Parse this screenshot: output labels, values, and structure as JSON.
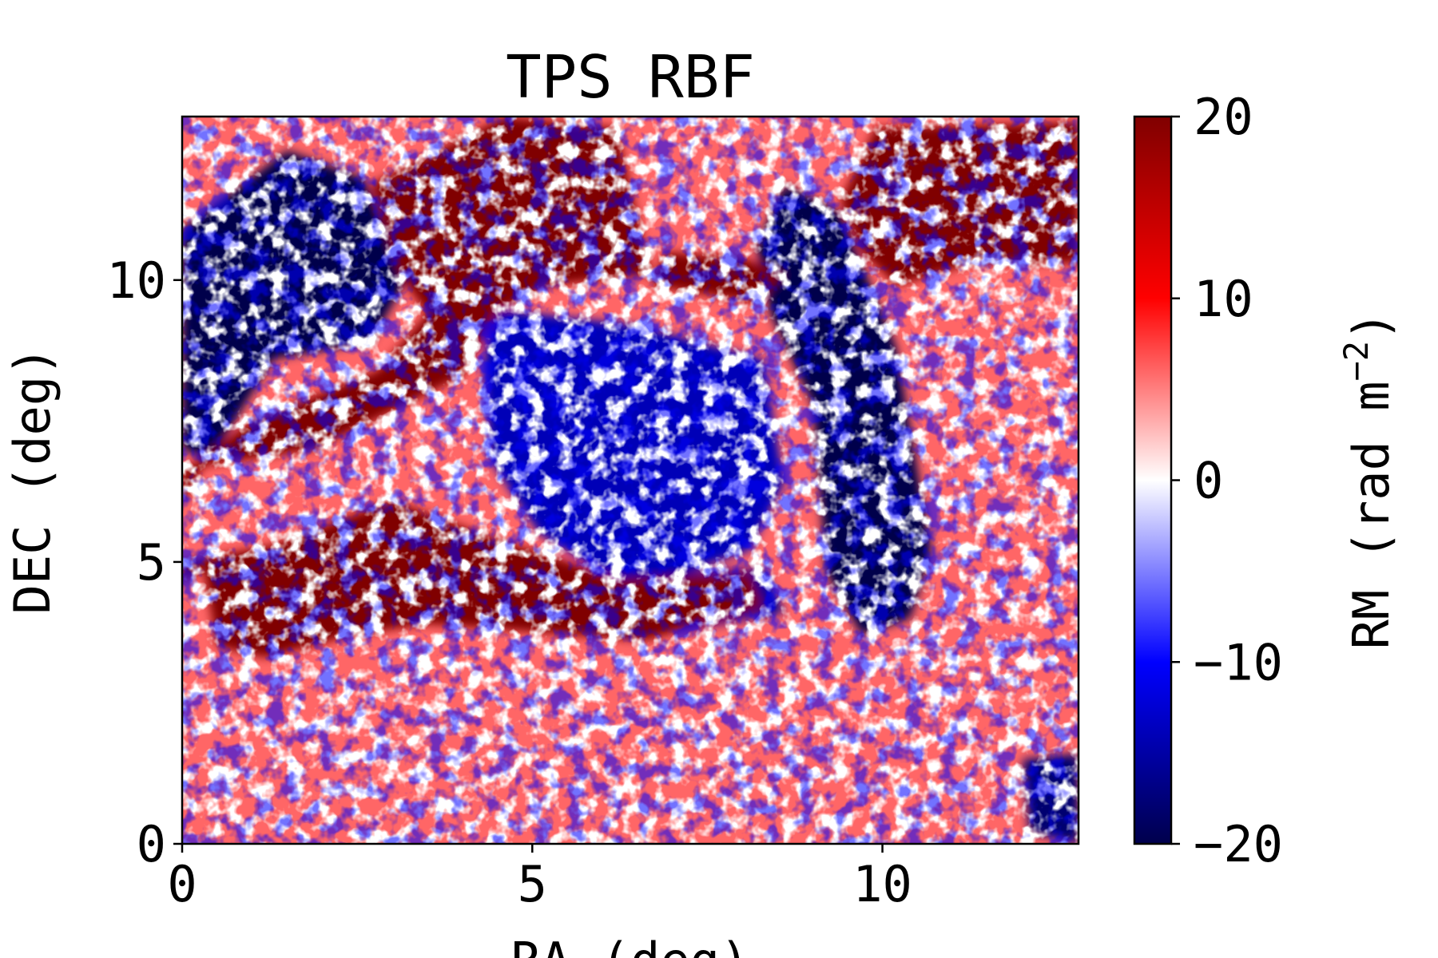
{
  "chart_data": {
    "type": "heatmap",
    "title": "TPS RBF",
    "xlabel": "RA (deg)",
    "ylabel": "DEC (deg)",
    "xlim": [
      0,
      12.8
    ],
    "ylim": [
      0,
      12.9
    ],
    "xticks": [
      {
        "value": 0,
        "label": "0"
      },
      {
        "value": 5,
        "label": "5"
      },
      {
        "value": 10,
        "label": "10"
      }
    ],
    "yticks": [
      {
        "value": 0,
        "label": "0"
      },
      {
        "value": 5,
        "label": "5"
      },
      {
        "value": 10,
        "label": "10"
      }
    ],
    "colorbar": {
      "label": "RM (rad m^-2)",
      "label_main": "RM (rad m",
      "label_exp": "−2",
      "label_close": ")",
      "range": [
        -20,
        20
      ],
      "colormap": "seismic",
      "colormap_stops": [
        "#00004c",
        "#0000ff",
        "#ffffff",
        "#ff0000",
        "#800000"
      ],
      "ticks": [
        {
          "value": 20,
          "label": "20"
        },
        {
          "value": 10,
          "label": "10"
        },
        {
          "value": 0,
          "label": "0"
        },
        {
          "value": -10,
          "label": "−10"
        },
        {
          "value": -20,
          "label": "−20"
        }
      ]
    },
    "regions": [
      {
        "desc": "strong negative",
        "value": -20,
        "polygon": [
          [
            0,
            10.9
          ],
          [
            1.5,
            12.3
          ],
          [
            2.6,
            11.8
          ],
          [
            3.2,
            10.0
          ],
          [
            2.7,
            8.9
          ],
          [
            1.3,
            8.6
          ],
          [
            0.4,
            6.8
          ],
          [
            0,
            7.0
          ]
        ]
      },
      {
        "desc": "strong negative",
        "value": -20,
        "polygon": [
          [
            8.6,
            11.7
          ],
          [
            9.4,
            11.2
          ],
          [
            10.2,
            8.8
          ],
          [
            10.7,
            5.2
          ],
          [
            10.4,
            4.0
          ],
          [
            9.7,
            3.7
          ],
          [
            9.2,
            4.8
          ],
          [
            9.0,
            7.8
          ],
          [
            8.4,
            9.4
          ],
          [
            8.2,
            10.6
          ]
        ]
      },
      {
        "desc": "negative",
        "value": -14,
        "polygon": [
          [
            4.4,
            9.5
          ],
          [
            6.5,
            9.2
          ],
          [
            8.3,
            8.6
          ],
          [
            8.6,
            6.4
          ],
          [
            8.1,
            5.2
          ],
          [
            6.4,
            4.5
          ],
          [
            5.1,
            5.5
          ],
          [
            4.4,
            6.8
          ],
          [
            4.3,
            8.5
          ]
        ]
      },
      {
        "desc": "negative",
        "value": -16,
        "polygon": [
          [
            6.4,
            4.8
          ],
          [
            8.3,
            4.9
          ],
          [
            8.6,
            4.1
          ],
          [
            6.4,
            3.6
          ],
          [
            5.8,
            4.1
          ]
        ]
      },
      {
        "desc": "negative",
        "value": -18,
        "polygon": [
          [
            12.0,
            1.5
          ],
          [
            12.8,
            1.6
          ],
          [
            12.8,
            0
          ],
          [
            12.1,
            0.2
          ]
        ]
      },
      {
        "desc": "strong positive",
        "value": 20,
        "polygon": [
          [
            2.7,
            11.7
          ],
          [
            4.6,
            12.9
          ],
          [
            6.2,
            12.7
          ],
          [
            6.7,
            10.1
          ],
          [
            5.2,
            9.9
          ],
          [
            4.5,
            9.4
          ],
          [
            4.0,
            8.3
          ],
          [
            3.2,
            7.8
          ],
          [
            1.9,
            7.0
          ],
          [
            0.3,
            6.7
          ],
          [
            0,
            6.0
          ],
          [
            0,
            5.0
          ],
          [
            1.3,
            5.3
          ],
          [
            3.0,
            6.1
          ],
          [
            4.5,
            5.4
          ],
          [
            6.3,
            4.7
          ],
          [
            8.1,
            4.8
          ],
          [
            8.3,
            4.2
          ],
          [
            6.6,
            3.6
          ],
          [
            4.6,
            3.8
          ],
          [
            3.5,
            3.9
          ],
          [
            2.4,
            3.7
          ],
          [
            1.2,
            3.3
          ],
          [
            0.5,
            3.5
          ],
          [
            0.3,
            4.9
          ],
          [
            0,
            4.6
          ],
          [
            0,
            6.6
          ],
          [
            1.0,
            7.5
          ],
          [
            2.8,
            8.4
          ],
          [
            3.5,
            9.4
          ],
          [
            3.1,
            10.1
          ]
        ]
      },
      {
        "desc": "strong positive",
        "value": 20,
        "polygon": [
          [
            9.9,
            12.7
          ],
          [
            12.8,
            12.8
          ],
          [
            12.8,
            10.3
          ],
          [
            11.3,
            10.3
          ],
          [
            10.2,
            9.9
          ],
          [
            9.7,
            10.5
          ],
          [
            9.4,
            11.4
          ]
        ]
      },
      {
        "desc": "strong positive",
        "value": 20,
        "polygon": [
          [
            6.7,
            9.9
          ],
          [
            8.2,
            9.6
          ],
          [
            8.6,
            10.1
          ],
          [
            8.0,
            10.4
          ],
          [
            6.9,
            10.5
          ]
        ]
      }
    ]
  }
}
